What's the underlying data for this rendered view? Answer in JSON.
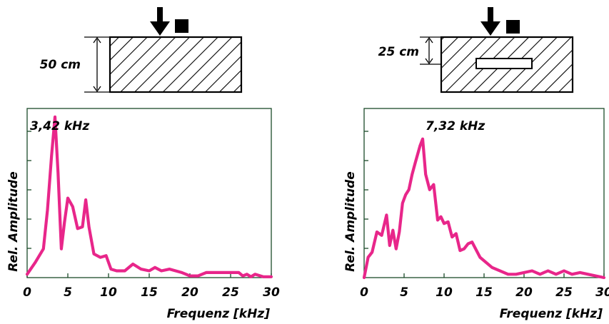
{
  "colors": {
    "curve": "#e8268a",
    "frame": "#1b4a2a"
  },
  "icons": [
    "impact-arrow-icon",
    "sensor-square-icon",
    "hatched-concrete-block",
    "dimension-arrow-icon"
  ],
  "chart_data": [
    {
      "type": "line",
      "thickness_label": "50 cm",
      "has_void": false,
      "peak_label": "3,42 kHz",
      "xlabel": "Frequenz [kHz]",
      "ylabel": "Rel. Amplitude",
      "xlim": [
        0,
        30
      ],
      "ylim": [
        0,
        1
      ],
      "x_ticks": [
        "0",
        "5",
        "10",
        "15",
        "20",
        "25",
        "30"
      ],
      "series": [
        {
          "x": [
            0,
            1,
            2,
            2.5,
            3,
            3.42,
            3.8,
            4.2,
            4.6,
            5.0,
            5.6,
            6.2,
            6.8,
            7.2,
            7.6,
            8.2,
            9,
            9.7,
            10.3,
            11,
            12,
            13,
            14,
            15,
            15.7,
            16.5,
            17.5,
            19,
            20,
            21,
            22,
            24,
            26,
            26.5,
            27,
            27.5,
            28,
            29,
            30
          ],
          "y": [
            0.02,
            0.09,
            0.17,
            0.4,
            0.72,
            0.95,
            0.62,
            0.17,
            0.33,
            0.47,
            0.42,
            0.29,
            0.3,
            0.46,
            0.3,
            0.14,
            0.12,
            0.13,
            0.05,
            0.04,
            0.04,
            0.08,
            0.05,
            0.04,
            0.06,
            0.04,
            0.05,
            0.03,
            0.01,
            0.01,
            0.03,
            0.03,
            0.03,
            0.01,
            0.02,
            0.005,
            0.02,
            0.005,
            0.005
          ]
        }
      ]
    },
    {
      "type": "line",
      "thickness_label": "25 cm",
      "has_void": true,
      "peak_label": "7,32 kHz",
      "xlabel": "Frequenz [kHz]",
      "ylabel": "Rel. Amplitude",
      "xlim": [
        0,
        30
      ],
      "ylim": [
        0,
        1
      ],
      "x_ticks": [
        "0",
        "5",
        "10",
        "15",
        "20",
        "25",
        "30"
      ],
      "series": [
        {
          "x": [
            0,
            0.5,
            1,
            1.6,
            2.2,
            2.8,
            3.2,
            3.6,
            4.0,
            4.4,
            4.8,
            5.2,
            5.6,
            6.0,
            6.4,
            7.0,
            7.32,
            7.7,
            8.2,
            8.7,
            9.2,
            9.6,
            10.0,
            10.5,
            11.0,
            11.5,
            12.0,
            12.5,
            13.0,
            13.5,
            14.5,
            16,
            18,
            19,
            20,
            21,
            22,
            23,
            24,
            25,
            26,
            27,
            28,
            30
          ],
          "y": [
            0.0,
            0.12,
            0.15,
            0.27,
            0.25,
            0.37,
            0.19,
            0.28,
            0.17,
            0.27,
            0.44,
            0.49,
            0.52,
            0.61,
            0.68,
            0.78,
            0.82,
            0.61,
            0.52,
            0.55,
            0.34,
            0.36,
            0.32,
            0.33,
            0.24,
            0.26,
            0.16,
            0.17,
            0.2,
            0.21,
            0.12,
            0.06,
            0.02,
            0.02,
            0.03,
            0.04,
            0.02,
            0.04,
            0.02,
            0.04,
            0.02,
            0.03,
            0.02,
            0.0
          ]
        }
      ]
    }
  ]
}
